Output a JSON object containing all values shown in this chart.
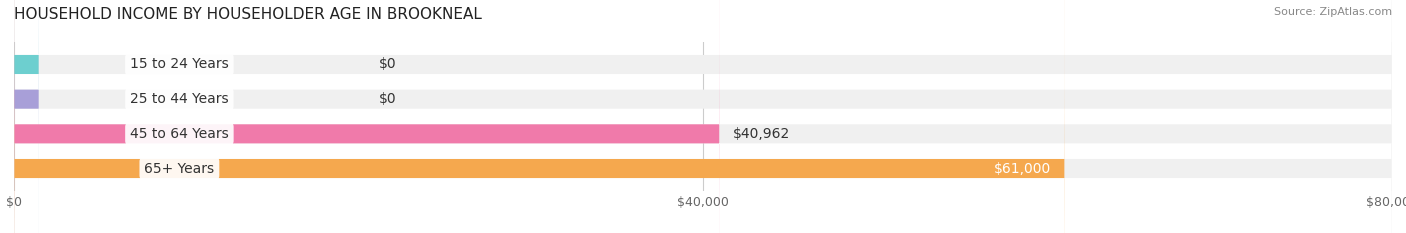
{
  "title": "HOUSEHOLD INCOME BY HOUSEHOLDER AGE IN BROOKNEAL",
  "source": "Source: ZipAtlas.com",
  "categories": [
    "15 to 24 Years",
    "25 to 44 Years",
    "45 to 64 Years",
    "65+ Years"
  ],
  "values": [
    0,
    0,
    40962,
    61000
  ],
  "bar_colors": [
    "#6dcfcf",
    "#a89fd8",
    "#f07aaa",
    "#f5a84e"
  ],
  "bar_bg_color": "#f0f0f0",
  "value_labels": [
    "$0",
    "$0",
    "$40,962",
    "$61,000"
  ],
  "xlim": [
    0,
    80000
  ],
  "xticks": [
    0,
    40000,
    80000
  ],
  "xticklabels": [
    "$0",
    "$40,000",
    "$80,000"
  ],
  "background_color": "#ffffff",
  "bar_height": 0.55,
  "title_fontsize": 11,
  "label_fontsize": 10,
  "tick_fontsize": 9
}
